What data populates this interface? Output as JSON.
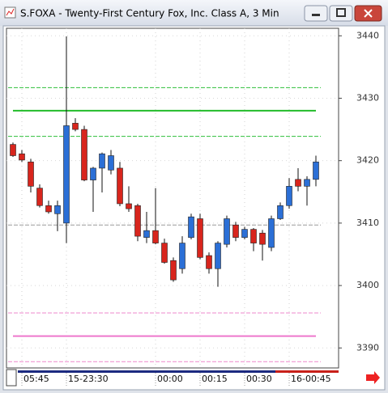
{
  "chart_data": {
    "type": "candlestick",
    "title": "S.FOXA - Twenty-First Century Fox, Inc. Class A, 3 Min",
    "categories": [
      null,
      "05:45",
      null,
      null,
      null,
      null,
      "15-23:30",
      null,
      null,
      null,
      null,
      null,
      null,
      null,
      null,
      null,
      "00:00",
      null,
      null,
      null,
      null,
      "00:15",
      null,
      null,
      null,
      null,
      "00:30",
      null,
      null,
      null,
      null,
      "16-00:45",
      null,
      null,
      null
    ],
    "open": [
      3422.6,
      3421.1,
      3419.8,
      3415.6,
      3412.8,
      3411.5,
      3410.0,
      3426.0,
      3425.0,
      3416.9,
      3418.8,
      3418.5,
      3418.8,
      3413.1,
      3412.8,
      3407.7,
      3408.8,
      3406.8,
      3404.0,
      3402.7,
      3407.7,
      3410.7,
      3404.8,
      3402.7,
      3406.6,
      3409.7,
      3407.7,
      3409.0,
      3408.4,
      3406.1,
      3410.7,
      3412.8,
      3417.0,
      3415.9,
      3417.0
    ],
    "high": [
      3422.9,
      3421.7,
      3420.3,
      3416.2,
      3413.6,
      3413.6,
      3439.9,
      3426.8,
      3425.6,
      3419.0,
      3421.3,
      3421.7,
      3419.8,
      3415.9,
      3413.1,
      3411.8,
      3415.6,
      3407.5,
      3404.5,
      3407.9,
      3411.5,
      3411.5,
      3405.3,
      3407.1,
      3411.2,
      3410.2,
      3409.4,
      3409.2,
      3408.9,
      3411.2,
      3413.3,
      3417.2,
      3418.8,
      3417.5,
      3420.8
    ],
    "low": [
      3420.6,
      3419.8,
      3414.9,
      3412.5,
      3411.5,
      3408.7,
      3406.8,
      3424.7,
      3416.7,
      3411.8,
      3414.9,
      3417.8,
      3412.7,
      3411.8,
      3407.1,
      3406.8,
      3406.6,
      3403.5,
      3400.6,
      3401.9,
      3407.4,
      3404.2,
      3401.9,
      3399.8,
      3406.1,
      3407.1,
      3407.4,
      3405.5,
      3404.0,
      3405.5,
      3410.5,
      3412.3,
      3415.1,
      3412.8,
      3415.9
    ],
    "close": [
      3420.8,
      3420.1,
      3415.9,
      3412.8,
      3411.8,
      3412.8,
      3425.6,
      3425.0,
      3416.9,
      3418.8,
      3421.1,
      3420.8,
      3413.1,
      3412.3,
      3407.9,
      3408.8,
      3406.8,
      3403.7,
      3400.9,
      3406.8,
      3411.0,
      3404.5,
      3402.7,
      3406.8,
      3410.7,
      3407.7,
      3409.0,
      3406.8,
      3406.6,
      3410.7,
      3412.8,
      3415.9,
      3415.9,
      3417.0,
      3419.8
    ],
    "up_color": "#2b6fd6",
    "down_color": "#d8251d",
    "levels": [
      {
        "value": 3431.7,
        "color": "#2fbf3a",
        "style": "dashed"
      },
      {
        "value": 3428.0,
        "color": "#22bb2a",
        "style": "solid"
      },
      {
        "value": 3423.9,
        "color": "#2fbf3a",
        "style": "dashed"
      },
      {
        "value": 3409.7,
        "color": "#999999",
        "style": "dashed"
      },
      {
        "value": 3395.6,
        "color": "#ee88cc",
        "style": "dashed"
      },
      {
        "value": 3391.9,
        "color": "#ee77cc",
        "style": "solid"
      },
      {
        "value": 3387.8,
        "color": "#ee88cc",
        "style": "dashed"
      }
    ],
    "ylim": [
      3386.8,
      3441.2
    ],
    "yticks": [
      3390,
      3400,
      3410,
      3420,
      3430,
      3440
    ],
    "grid": true
  }
}
